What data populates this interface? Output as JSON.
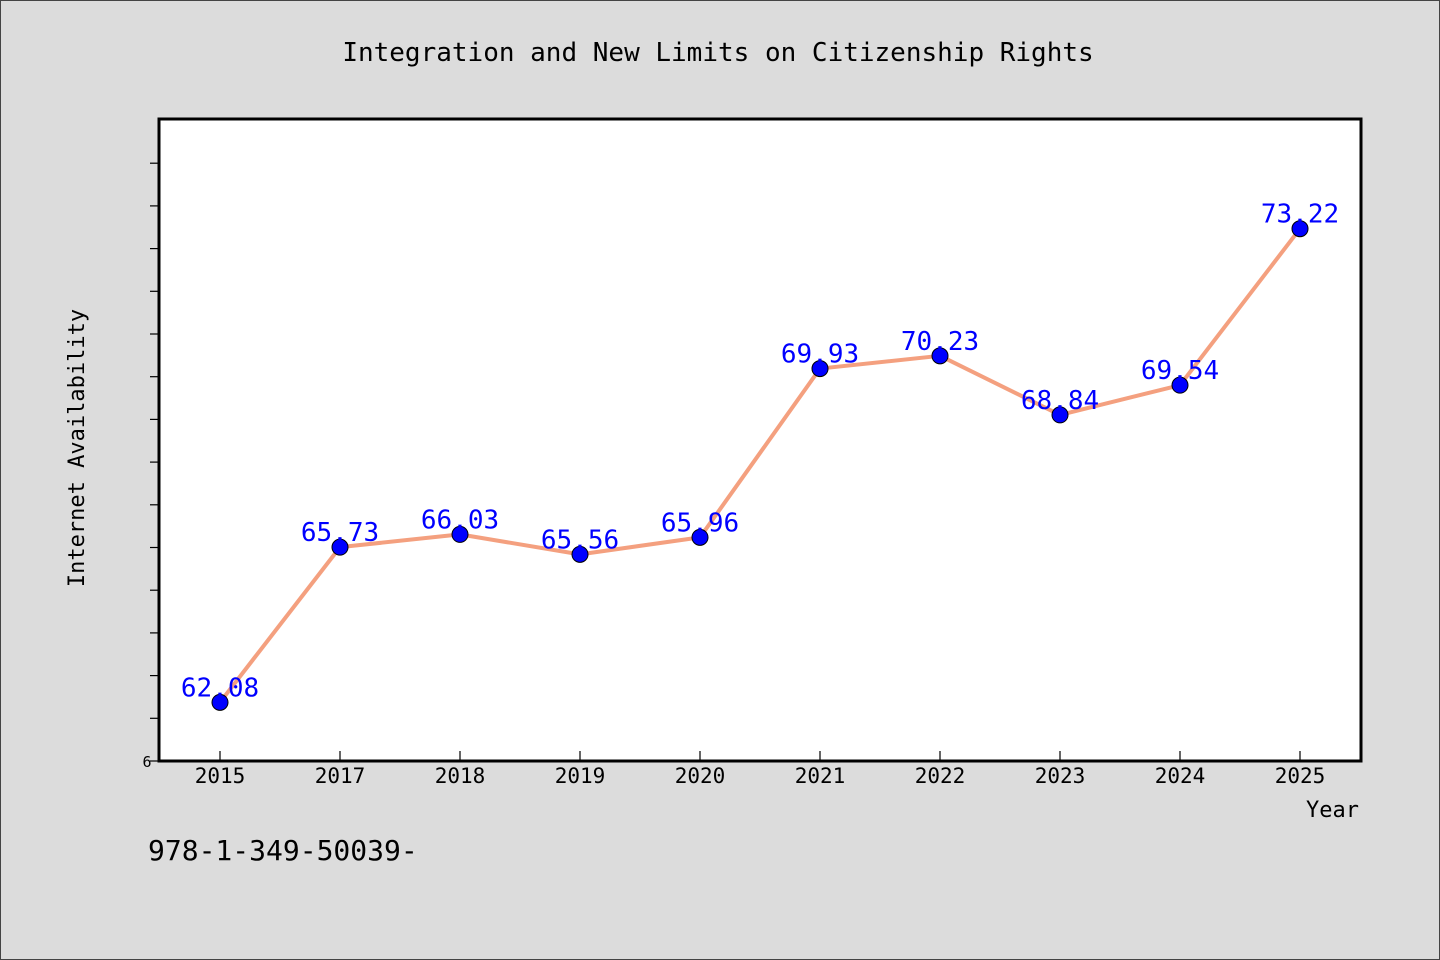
{
  "chart_data": {
    "type": "line",
    "title": "Integration and New Limits on Citizenship Rights",
    "xlabel": "Year",
    "ylabel": "Internet Availability",
    "categories": [
      "2015",
      "2017",
      "2018",
      "2019",
      "2020",
      "2021",
      "2022",
      "2023",
      "2024",
      "2025"
    ],
    "series": [
      {
        "values": [
          62.08,
          65.73,
          66.03,
          65.56,
          65.96,
          69.93,
          70.23,
          68.84,
          69.54,
          73.22
        ],
        "labels": [
          "62.08",
          "65.73",
          "66.03",
          "65.56",
          "65.96",
          "69.93",
          "70.23",
          "68.84",
          "69.54",
          "73.22"
        ],
        "line_color": "#f4a07f",
        "marker_color": "#0000ff"
      }
    ],
    "y_tick_labels": [
      "6"
    ],
    "ylim": [
      60.7,
      75.8
    ],
    "grid": false,
    "legend": "none"
  },
  "footnote": "978-1-349-50039-"
}
